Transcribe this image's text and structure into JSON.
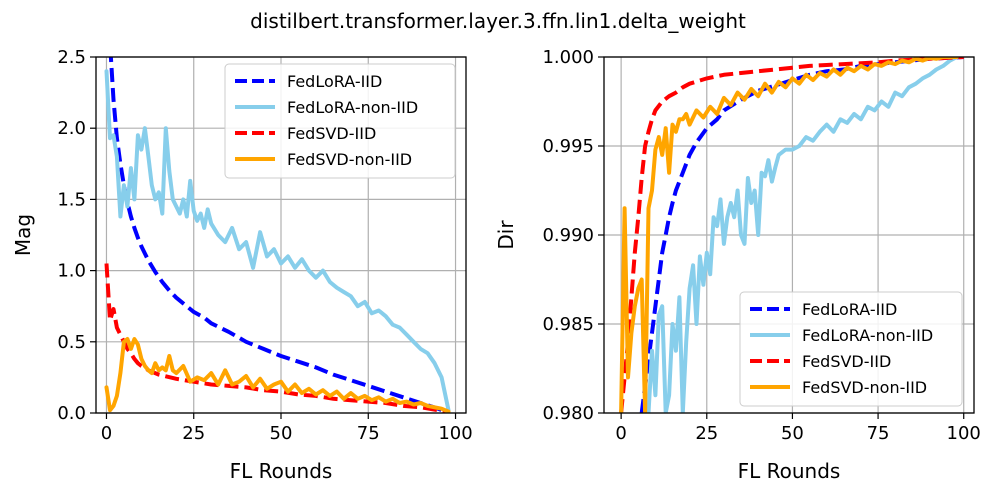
{
  "title": "distilbert.transformer.layer.3.ffn.lin1.delta_weight",
  "colors": {
    "FedLoRA-IID": "#0000ff",
    "FedLoRA-non-IID": "#87ceeb",
    "FedSVD-IID": "#ff0000",
    "FedSVD-non-IID": "#ffa500",
    "grid": "#b0b0b0"
  },
  "chart_data": [
    {
      "type": "line",
      "xlabel": "FL Rounds",
      "ylabel": "Mag",
      "xlim": [
        -3,
        103
      ],
      "ylim": [
        0,
        2.5
      ],
      "xticks": [
        0,
        25,
        50,
        75,
        100
      ],
      "yticks": [
        0.0,
        0.5,
        1.0,
        1.5,
        2.0,
        2.5
      ],
      "ytick_labels": [
        "0.0",
        "0.5",
        "1.0",
        "1.5",
        "2.0",
        "2.5"
      ],
      "grid": true,
      "legend": "top-right",
      "series": [
        {
          "name": "FedLoRA-IID",
          "style": "dashed",
          "x": [
            0,
            1,
            2,
            3,
            4,
            5,
            6,
            7,
            8,
            9,
            10,
            12,
            14,
            16,
            18,
            20,
            22,
            25,
            28,
            30,
            35,
            40,
            45,
            50,
            55,
            60,
            65,
            70,
            75,
            80,
            85,
            90,
            95,
            98
          ],
          "y": [
            2.7,
            2.6,
            2.2,
            1.93,
            1.75,
            1.6,
            1.48,
            1.38,
            1.3,
            1.23,
            1.17,
            1.07,
            0.99,
            0.92,
            0.86,
            0.81,
            0.77,
            0.71,
            0.67,
            0.63,
            0.57,
            0.5,
            0.45,
            0.4,
            0.36,
            0.32,
            0.27,
            0.23,
            0.19,
            0.15,
            0.11,
            0.07,
            0.03,
            0.0
          ]
        },
        {
          "name": "FedLoRA-non-IID",
          "style": "solid",
          "x": [
            0,
            1,
            2,
            3,
            4,
            5,
            6,
            7,
            8,
            9,
            10,
            11,
            12,
            13,
            14,
            15,
            16,
            17,
            18,
            19,
            20,
            21,
            22,
            23,
            24,
            25,
            26,
            27,
            28,
            29,
            30,
            32,
            34,
            36,
            38,
            40,
            42,
            44,
            46,
            48,
            50,
            52,
            54,
            56,
            58,
            60,
            62,
            64,
            66,
            68,
            70,
            72,
            74,
            76,
            78,
            80,
            82,
            84,
            86,
            88,
            90,
            92,
            94,
            96,
            98
          ],
          "y": [
            2.4,
            1.93,
            1.95,
            1.8,
            1.38,
            1.6,
            1.45,
            1.72,
            1.5,
            1.95,
            1.85,
            2.0,
            1.8,
            1.6,
            1.5,
            1.55,
            1.4,
            2.0,
            1.7,
            1.5,
            1.45,
            1.4,
            1.5,
            1.38,
            1.63,
            1.42,
            1.35,
            1.4,
            1.3,
            1.43,
            1.33,
            1.25,
            1.2,
            1.3,
            1.15,
            1.2,
            1.02,
            1.27,
            1.1,
            1.15,
            1.05,
            1.1,
            1.02,
            1.08,
            1.0,
            0.95,
            1.0,
            0.92,
            0.88,
            0.85,
            0.82,
            0.75,
            0.78,
            0.7,
            0.72,
            0.68,
            0.62,
            0.6,
            0.55,
            0.5,
            0.45,
            0.42,
            0.35,
            0.25,
            0.02
          ]
        },
        {
          "name": "FedSVD-IID",
          "style": "dashed",
          "x": [
            0,
            1,
            2,
            3,
            4,
            5,
            6,
            7,
            8,
            9,
            10,
            12,
            15,
            20,
            25,
            30,
            35,
            40,
            45,
            50,
            55,
            60,
            65,
            70,
            75,
            80,
            85,
            90,
            95,
            98
          ],
          "y": [
            1.05,
            0.65,
            0.73,
            0.6,
            0.55,
            0.5,
            0.45,
            0.42,
            0.38,
            0.35,
            0.33,
            0.3,
            0.27,
            0.24,
            0.22,
            0.2,
            0.19,
            0.18,
            0.16,
            0.15,
            0.13,
            0.12,
            0.1,
            0.09,
            0.08,
            0.07,
            0.05,
            0.04,
            0.02,
            0.0
          ]
        },
        {
          "name": "FedSVD-non-IID",
          "style": "solid",
          "x": [
            0,
            1,
            2,
            3,
            4,
            5,
            6,
            7,
            8,
            9,
            10,
            11,
            12,
            13,
            14,
            15,
            16,
            17,
            18,
            19,
            20,
            22,
            24,
            26,
            28,
            30,
            32,
            34,
            36,
            38,
            40,
            42,
            44,
            46,
            48,
            50,
            52,
            54,
            56,
            58,
            60,
            62,
            64,
            66,
            68,
            70,
            72,
            74,
            76,
            78,
            80,
            82,
            84,
            86,
            88,
            90,
            92,
            94,
            96,
            98
          ],
          "y": [
            0.18,
            0.02,
            0.05,
            0.12,
            0.28,
            0.5,
            0.52,
            0.45,
            0.52,
            0.48,
            0.38,
            0.33,
            0.3,
            0.28,
            0.35,
            0.3,
            0.32,
            0.3,
            0.4,
            0.3,
            0.28,
            0.33,
            0.22,
            0.25,
            0.23,
            0.28,
            0.2,
            0.3,
            0.2,
            0.22,
            0.26,
            0.18,
            0.24,
            0.17,
            0.2,
            0.22,
            0.15,
            0.2,
            0.14,
            0.17,
            0.13,
            0.16,
            0.12,
            0.15,
            0.1,
            0.14,
            0.1,
            0.12,
            0.09,
            0.11,
            0.08,
            0.1,
            0.07,
            0.08,
            0.06,
            0.07,
            0.05,
            0.04,
            0.03,
            0.01
          ]
        }
      ]
    },
    {
      "type": "line",
      "xlabel": "FL Rounds",
      "ylabel": "Dir",
      "xlim": [
        -5,
        103
      ],
      "ylim": [
        0.98,
        1.0
      ],
      "xticks": [
        0,
        25,
        50,
        75,
        100
      ],
      "yticks": [
        0.98,
        0.985,
        0.99,
        0.995,
        1.0
      ],
      "ytick_labels": [
        "0.980",
        "0.985",
        "0.990",
        "0.995",
        "1.000"
      ],
      "grid": true,
      "legend": "bottom-right",
      "series": [
        {
          "name": "FedLoRA-IID",
          "style": "dashed",
          "x": [
            6,
            7,
            8,
            9,
            10,
            11,
            12,
            13,
            14,
            15,
            16,
            18,
            20,
            22,
            25,
            28,
            30,
            35,
            40,
            45,
            50,
            55,
            60,
            65,
            70,
            75,
            80,
            85,
            90,
            95,
            100
          ],
          "y": [
            0.98,
            0.9815,
            0.983,
            0.9845,
            0.986,
            0.9875,
            0.989,
            0.99,
            0.991,
            0.9918,
            0.9925,
            0.9935,
            0.9945,
            0.9952,
            0.996,
            0.9965,
            0.997,
            0.9976,
            0.9981,
            0.9984,
            0.9987,
            0.999,
            0.9992,
            0.9993,
            0.9995,
            0.9996,
            0.9997,
            0.9998,
            0.9999,
            0.99995,
            1.0
          ]
        },
        {
          "name": "FedLoRA-non-IID",
          "style": "solid",
          "x": [
            8,
            9,
            10,
            11,
            12,
            13,
            14,
            15,
            16,
            17,
            18,
            19,
            20,
            21,
            22,
            23,
            24,
            25,
            26,
            27,
            28,
            29,
            30,
            31,
            32,
            33,
            34,
            35,
            36,
            37,
            38,
            39,
            40,
            41,
            42,
            43,
            44,
            45,
            46,
            48,
            50,
            52,
            54,
            56,
            58,
            60,
            62,
            64,
            66,
            68,
            70,
            72,
            74,
            76,
            78,
            80,
            82,
            84,
            86,
            88,
            90,
            92,
            94,
            96,
            98
          ],
          "y": [
            0.98,
            0.9835,
            0.981,
            0.9855,
            0.986,
            0.98,
            0.981,
            0.985,
            0.9835,
            0.9865,
            0.98,
            0.984,
            0.987,
            0.9883,
            0.985,
            0.9888,
            0.9872,
            0.989,
            0.9878,
            0.991,
            0.9905,
            0.992,
            0.9895,
            0.991,
            0.9918,
            0.991,
            0.9925,
            0.99,
            0.9895,
            0.9932,
            0.9918,
            0.9925,
            0.99,
            0.9935,
            0.9933,
            0.9942,
            0.993,
            0.9938,
            0.9945,
            0.9948,
            0.9948,
            0.995,
            0.9955,
            0.9953,
            0.9958,
            0.9962,
            0.9958,
            0.9965,
            0.9963,
            0.9968,
            0.9965,
            0.9972,
            0.997,
            0.9975,
            0.9972,
            0.998,
            0.9978,
            0.9983,
            0.9985,
            0.9988,
            0.999,
            0.9993,
            0.9995,
            0.9998,
            1.0
          ]
        },
        {
          "name": "FedSVD-IID",
          "style": "dashed",
          "x": [
            0,
            1,
            2,
            3,
            4,
            5,
            6,
            7,
            8,
            9,
            10,
            12,
            14,
            16,
            18,
            20,
            25,
            30,
            35,
            40,
            45,
            50,
            55,
            60,
            65,
            70,
            75,
            80,
            85,
            90,
            95,
            100
          ],
          "y": [
            0.98,
            0.982,
            0.984,
            0.9865,
            0.989,
            0.991,
            0.9932,
            0.995,
            0.9958,
            0.9965,
            0.997,
            0.9975,
            0.9978,
            0.998,
            0.9983,
            0.9985,
            0.9988,
            0.999,
            0.9991,
            0.9992,
            0.9993,
            0.9994,
            0.9995,
            0.99955,
            0.9996,
            0.99965,
            0.9997,
            0.9998,
            0.99985,
            0.9999,
            0.99995,
            1.0
          ]
        },
        {
          "name": "FedSVD-non-IID",
          "style": "solid",
          "x": [
            0,
            1,
            2,
            3,
            4,
            5,
            6,
            7,
            8,
            9,
            10,
            11,
            12,
            13,
            14,
            15,
            16,
            17,
            18,
            19,
            20,
            22,
            24,
            26,
            28,
            30,
            32,
            34,
            36,
            38,
            40,
            42,
            44,
            46,
            48,
            50,
            52,
            54,
            56,
            58,
            60,
            62,
            64,
            66,
            68,
            70,
            72,
            74,
            76,
            78,
            80,
            82,
            84,
            86,
            88,
            90,
            92,
            94,
            96,
            98
          ],
          "y": [
            0.98,
            0.9915,
            0.982,
            0.9845,
            0.986,
            0.987,
            0.9875,
            0.98,
            0.9915,
            0.9925,
            0.9948,
            0.9955,
            0.9945,
            0.996,
            0.9935,
            0.9962,
            0.9958,
            0.9965,
            0.9965,
            0.9968,
            0.9962,
            0.997,
            0.9966,
            0.9972,
            0.9968,
            0.9977,
            0.9973,
            0.998,
            0.9976,
            0.9982,
            0.9978,
            0.9985,
            0.998,
            0.9986,
            0.9983,
            0.9988,
            0.9985,
            0.999,
            0.9987,
            0.9991,
            0.9989,
            0.9993,
            0.999,
            0.9994,
            0.9992,
            0.9995,
            0.9993,
            0.9996,
            0.9995,
            0.9997,
            0.9996,
            0.9998,
            0.9997,
            0.9999,
            0.9998,
            0.99995,
            0.9999,
            1.0,
            1.0,
            1.0
          ]
        }
      ]
    }
  ]
}
